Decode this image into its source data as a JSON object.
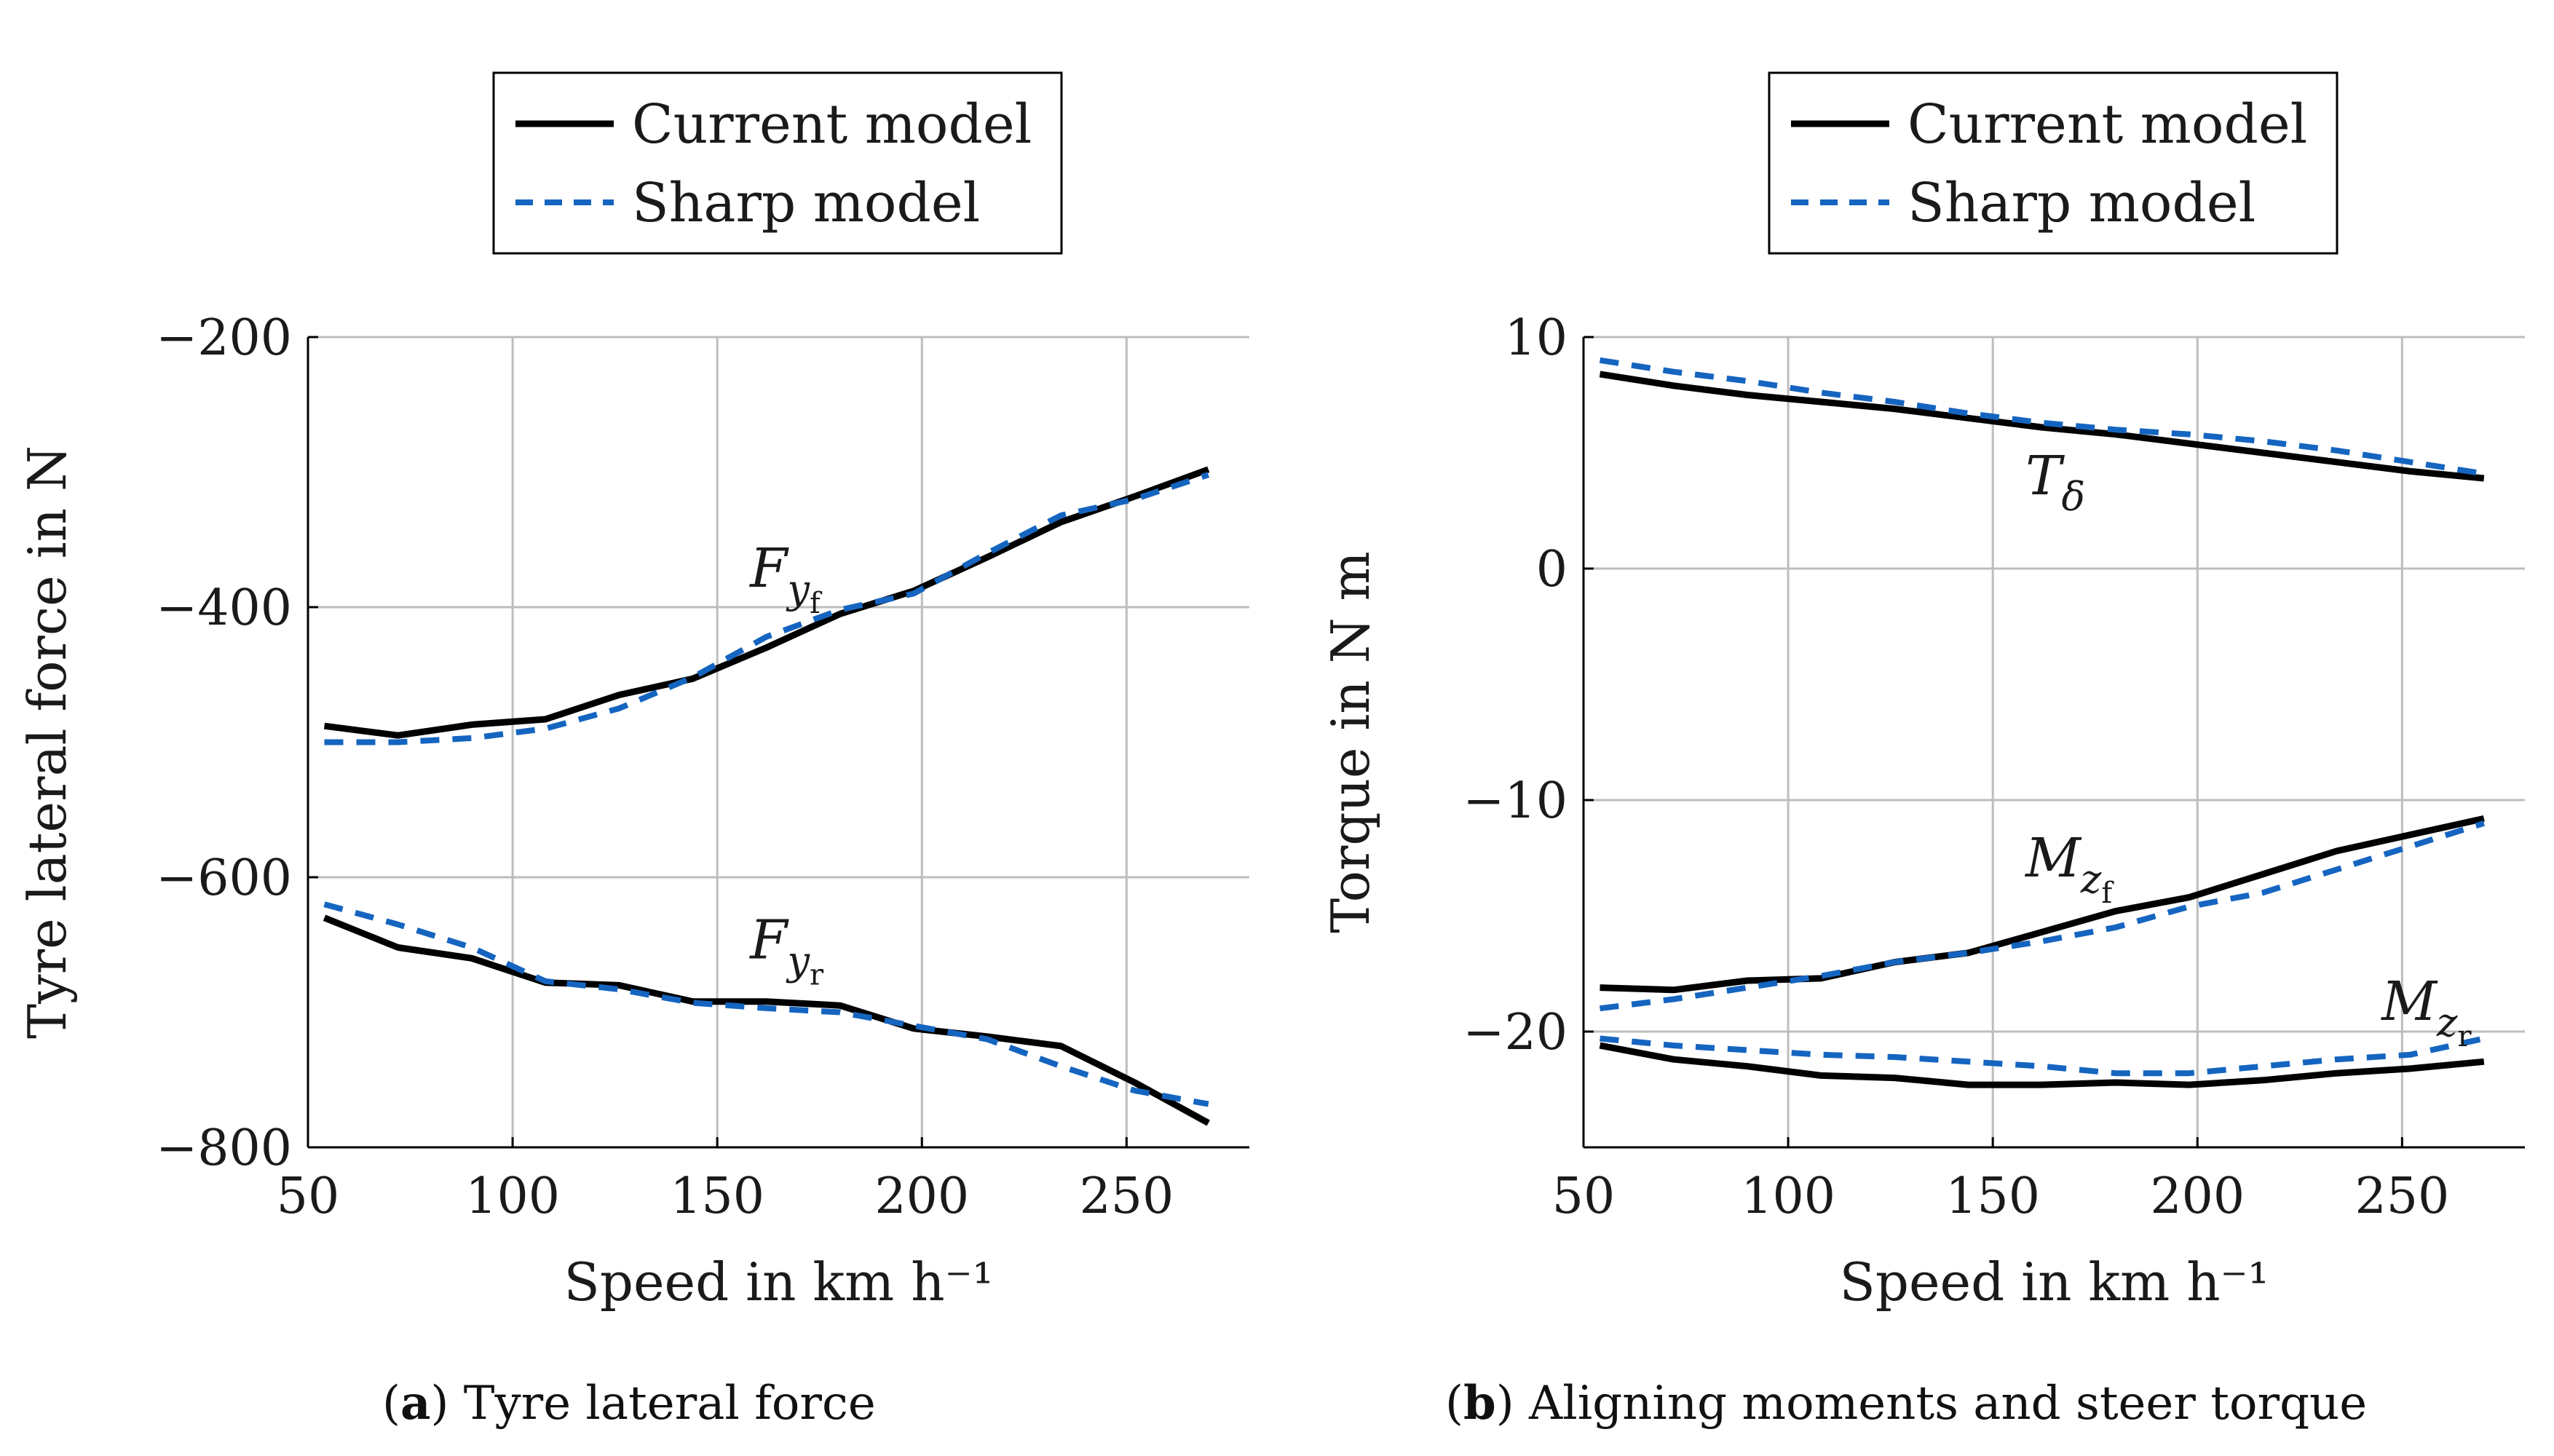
{
  "captions": [
    {
      "tag": "a",
      "text": "Tyre lateral force"
    },
    {
      "tag": "b",
      "text": "Aligning moments and steer torque"
    }
  ],
  "colors": {
    "current_model": "#000000",
    "sharp_model": "#1565c0",
    "grid": "#bdbdbd"
  },
  "chart_data": [
    {
      "type": "line",
      "xlabel": "Speed in km h⁻¹",
      "ylabel": "Tyre lateral force in N",
      "xlim": [
        50,
        280
      ],
      "ylim": [
        -800,
        -200
      ],
      "xticks": [
        50,
        100,
        150,
        200,
        250
      ],
      "yticks": [
        -800,
        -600,
        -400,
        -200
      ],
      "ytick_labels": [
        "−800",
        "−600",
        "−400",
        "−200"
      ],
      "grid": true,
      "legend": {
        "position": "top",
        "entries": [
          {
            "name": "Current model",
            "style": "solid",
            "color": "#000000"
          },
          {
            "name": "Sharp model",
            "style": "dashed",
            "color": "#1565c0"
          }
        ]
      },
      "annotations": [
        {
          "label": "F",
          "sub": "y",
          "subsub": "f",
          "x": 158,
          "y": -385
        },
        {
          "label": "F",
          "sub": "y",
          "subsub": "r",
          "x": 158,
          "y": -660
        }
      ],
      "series": [
        {
          "name": "Current model",
          "style": "solid",
          "color": "#000000",
          "x": [
            54,
            72,
            90,
            108,
            126,
            144,
            162,
            180,
            198,
            216,
            234,
            252,
            270
          ],
          "y": [
            -488,
            -495,
            -487,
            -483,
            -465,
            -453,
            -430,
            -405,
            -388,
            -363,
            -337,
            -318,
            -298
          ]
        },
        {
          "name": "Sharp model",
          "style": "dashed",
          "color": "#1565c0",
          "x": [
            54,
            72,
            90,
            108,
            126,
            144,
            162,
            180,
            198,
            216,
            234,
            252,
            270
          ],
          "y": [
            -500,
            -500,
            -497,
            -490,
            -475,
            -452,
            -422,
            -402,
            -390,
            -360,
            -332,
            -320,
            -302
          ]
        },
        {
          "name": "Current model",
          "style": "solid",
          "color": "#000000",
          "x": [
            54,
            72,
            90,
            108,
            126,
            144,
            162,
            180,
            198,
            216,
            234,
            252,
            270
          ],
          "y": [
            -630,
            -652,
            -660,
            -678,
            -680,
            -692,
            -692,
            -695,
            -712,
            -718,
            -725,
            -752,
            -782
          ]
        },
        {
          "name": "Sharp model",
          "style": "dashed",
          "color": "#1565c0",
          "x": [
            54,
            72,
            90,
            108,
            126,
            144,
            162,
            180,
            198,
            216,
            234,
            252,
            270
          ],
          "y": [
            -620,
            -635,
            -652,
            -677,
            -683,
            -693,
            -697,
            -700,
            -710,
            -720,
            -740,
            -758,
            -768
          ]
        }
      ]
    },
    {
      "type": "line",
      "xlabel": "Speed in km h⁻¹",
      "ylabel": "Torque in N m",
      "xlim": [
        50,
        280
      ],
      "ylim": [
        -25,
        10
      ],
      "xticks": [
        50,
        100,
        150,
        200,
        250
      ],
      "yticks": [
        -20,
        -10,
        0,
        10
      ],
      "ytick_labels": [
        "−20",
        "−10",
        "0",
        "10"
      ],
      "grid": true,
      "legend": {
        "position": "top",
        "entries": [
          {
            "name": "Current model",
            "style": "solid",
            "color": "#000000"
          },
          {
            "name": "Sharp model",
            "style": "dashed",
            "color": "#1565c0"
          }
        ]
      },
      "annotations": [
        {
          "label": "T",
          "sub": "δ",
          "subsub": "",
          "x": 158,
          "y": 3.2
        },
        {
          "label": "M",
          "sub": "z",
          "subsub": "f",
          "x": 158,
          "y": -13.3
        },
        {
          "label": "M",
          "sub": "z",
          "subsub": "r",
          "x": 245,
          "y": -19.5
        }
      ],
      "series": [
        {
          "name": "Current model",
          "style": "solid",
          "color": "#000000",
          "x": [
            54,
            72,
            90,
            108,
            126,
            144,
            162,
            180,
            198,
            216,
            234,
            252,
            270
          ],
          "y": [
            8.4,
            7.9,
            7.5,
            7.2,
            6.9,
            6.5,
            6.1,
            5.8,
            5.4,
            5.0,
            4.6,
            4.2,
            3.9
          ]
        },
        {
          "name": "Sharp model",
          "style": "dashed",
          "color": "#1565c0",
          "x": [
            54,
            72,
            90,
            108,
            126,
            144,
            162,
            180,
            198,
            216,
            234,
            252,
            270
          ],
          "y": [
            9.0,
            8.5,
            8.1,
            7.6,
            7.2,
            6.7,
            6.3,
            6.0,
            5.8,
            5.5,
            5.1,
            4.6,
            4.1
          ]
        },
        {
          "name": "Current model",
          "style": "solid",
          "color": "#000000",
          "x": [
            54,
            72,
            90,
            108,
            126,
            144,
            162,
            180,
            198,
            216,
            234,
            252,
            270
          ],
          "y": [
            -18.1,
            -18.2,
            -17.8,
            -17.7,
            -17.0,
            -16.6,
            -15.7,
            -14.8,
            -14.2,
            -13.2,
            -12.2,
            -11.5,
            -10.8
          ]
        },
        {
          "name": "Sharp model",
          "style": "dashed",
          "color": "#1565c0",
          "x": [
            54,
            72,
            90,
            108,
            126,
            144,
            162,
            180,
            198,
            216,
            234,
            252,
            270
          ],
          "y": [
            -19.0,
            -18.6,
            -18.1,
            -17.6,
            -17.0,
            -16.6,
            -16.1,
            -15.5,
            -14.6,
            -14.0,
            -13.0,
            -12.0,
            -11.0
          ]
        },
        {
          "name": "Current model",
          "style": "solid",
          "color": "#000000",
          "x": [
            54,
            72,
            90,
            108,
            126,
            144,
            162,
            180,
            198,
            216,
            234,
            252,
            270
          ],
          "y": [
            -20.6,
            -21.2,
            -21.5,
            -21.9,
            -22.0,
            -22.3,
            -22.3,
            -22.2,
            -22.3,
            -22.1,
            -21.8,
            -21.6,
            -21.3
          ]
        },
        {
          "name": "Sharp model",
          "style": "dashed",
          "color": "#1565c0",
          "x": [
            54,
            72,
            90,
            108,
            126,
            144,
            162,
            180,
            198,
            216,
            234,
            252,
            270
          ],
          "y": [
            -20.3,
            -20.6,
            -20.8,
            -21.0,
            -21.1,
            -21.3,
            -21.5,
            -21.8,
            -21.8,
            -21.5,
            -21.2,
            -21.0,
            -20.3
          ]
        }
      ]
    }
  ]
}
